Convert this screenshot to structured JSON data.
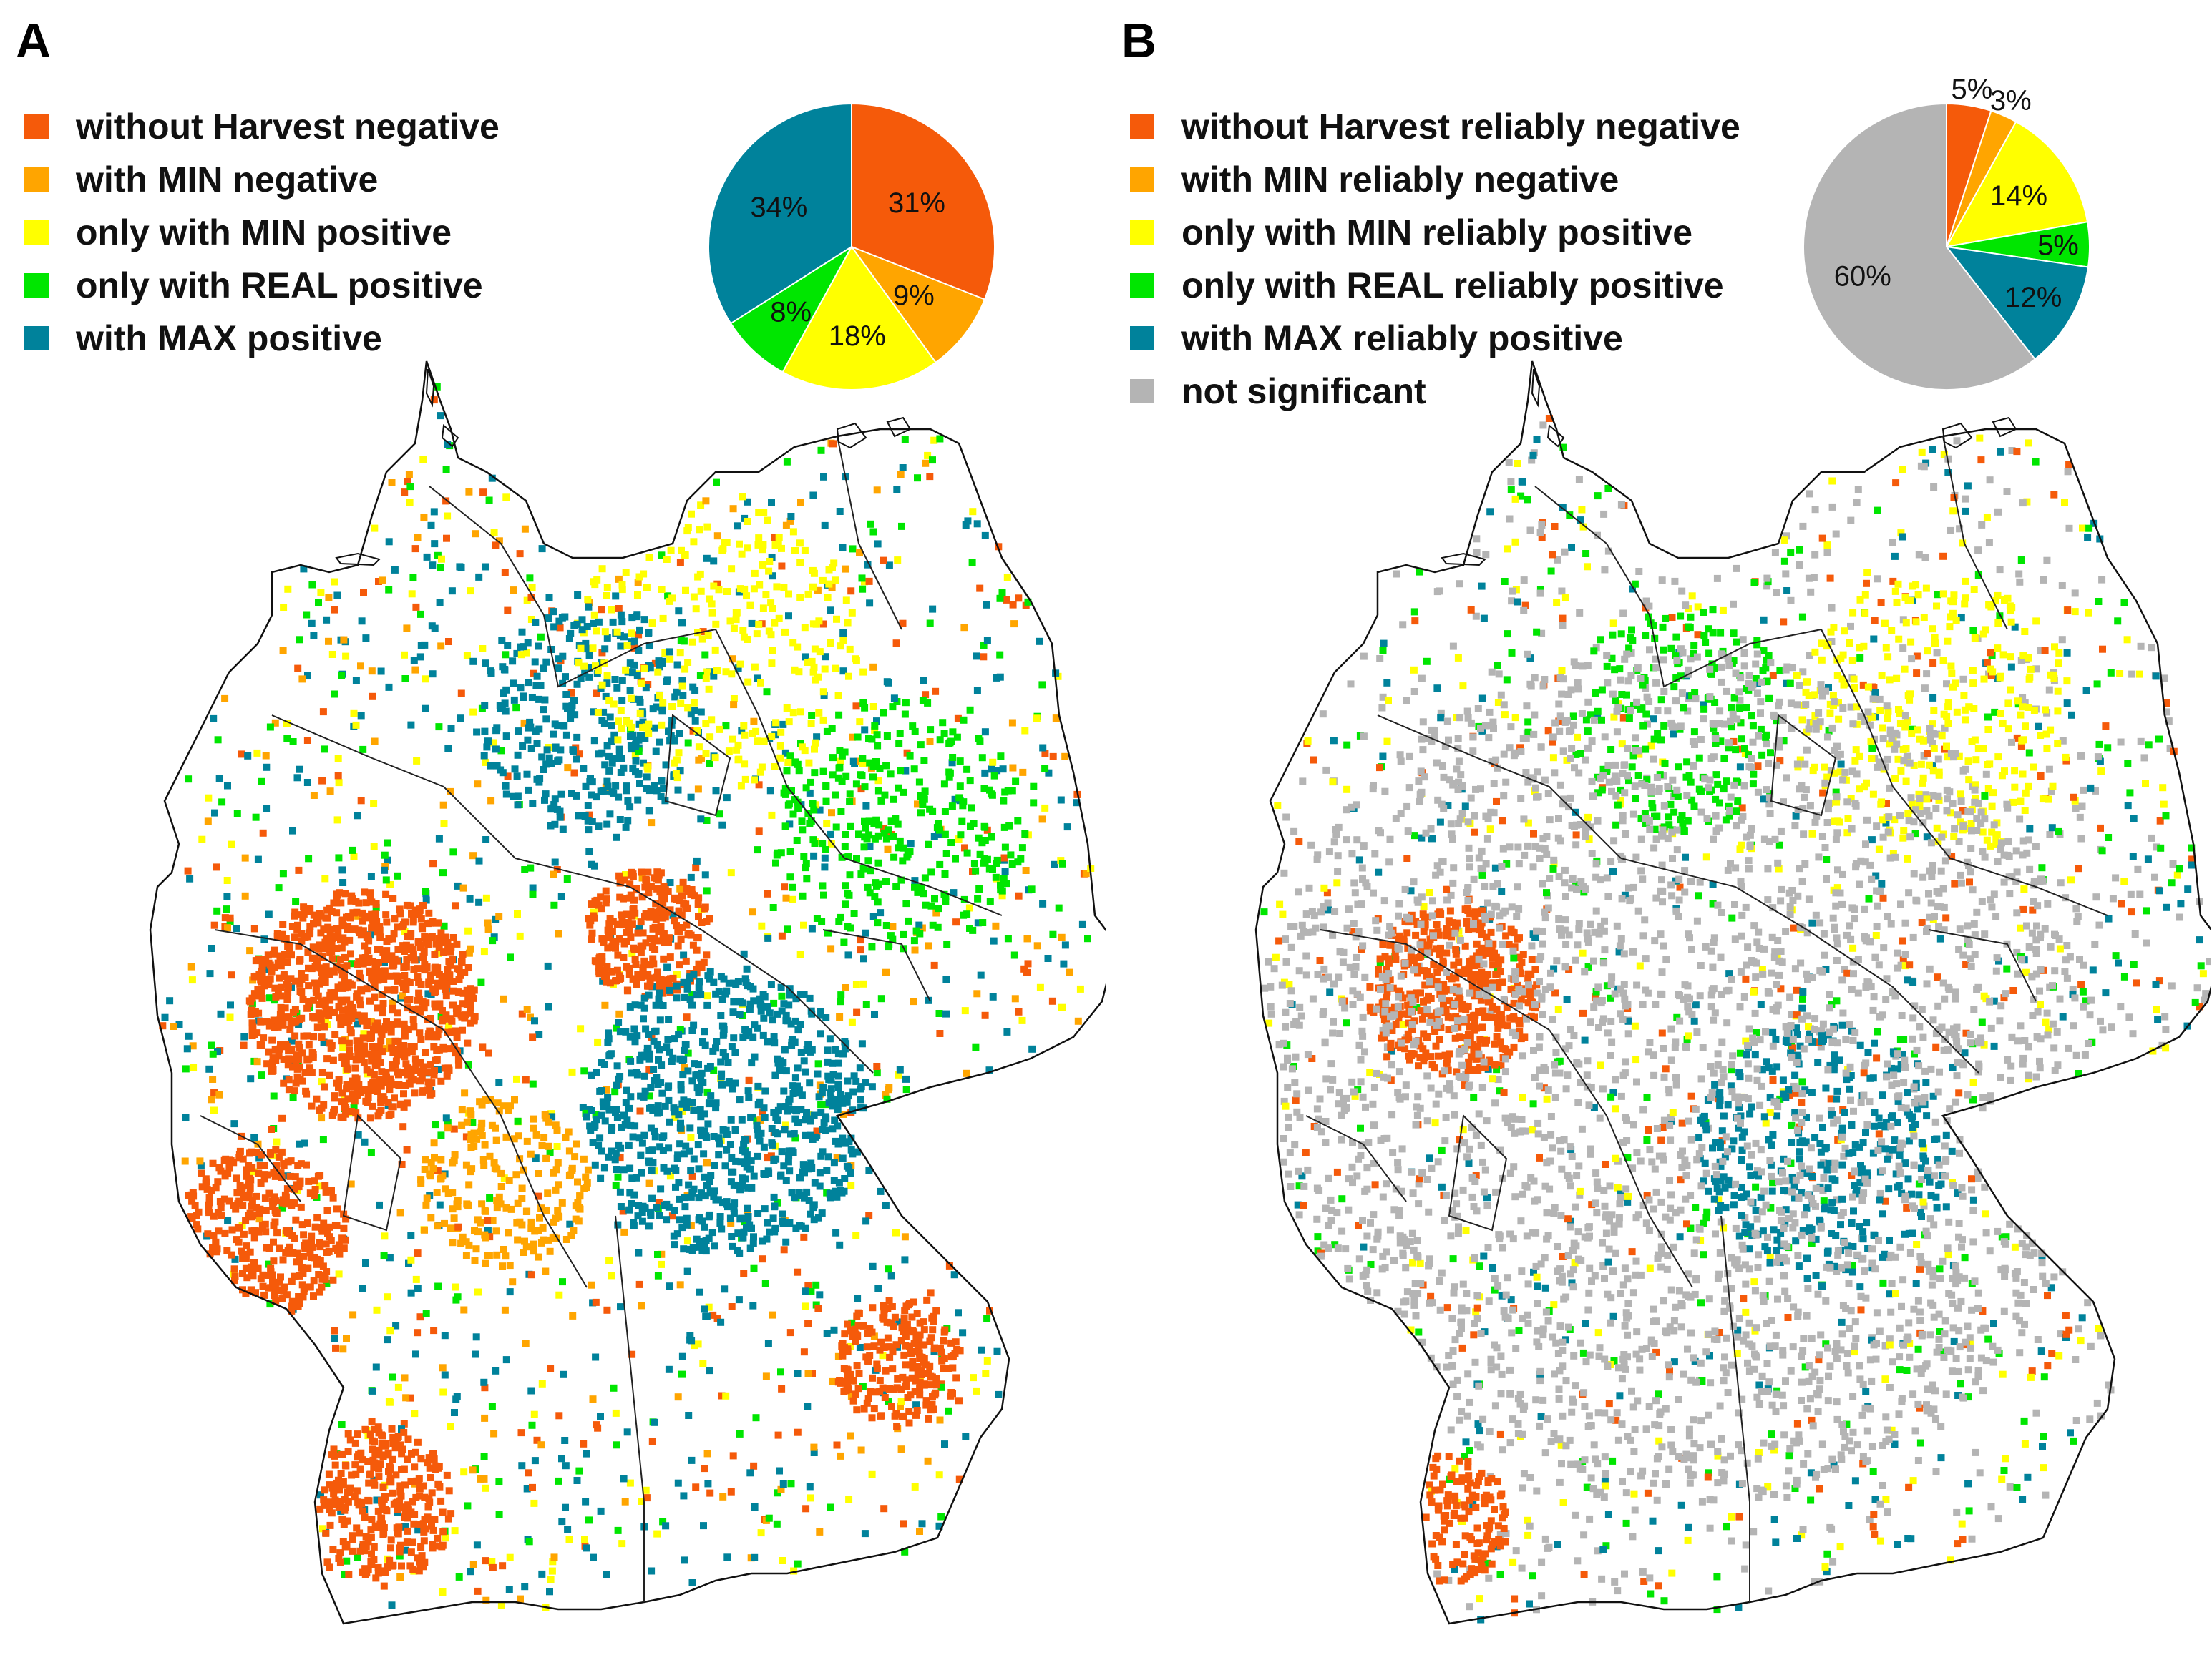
{
  "panels": [
    {
      "letter": "A",
      "legend": [
        {
          "label": "without Harvest negative",
          "color": "#f55a0a"
        },
        {
          "label": "with MIN negative",
          "color": "#ffa500"
        },
        {
          "label": "only with MIN positive",
          "color": "#ffff00"
        },
        {
          "label": "only with REAL positive",
          "color": "#00e600"
        },
        {
          "label": "with MAX positive",
          "color": "#00829b"
        }
      ],
      "chart_data": {
        "type": "pie",
        "slices": [
          {
            "category": "without Harvest negative",
            "value": 31,
            "label": "31%",
            "color": "#f55a0a"
          },
          {
            "category": "with MIN negative",
            "value": 9,
            "label": "9%",
            "color": "#ffa500"
          },
          {
            "category": "only with MIN positive",
            "value": 18,
            "label": "18%",
            "color": "#ffff00"
          },
          {
            "category": "only with REAL positive",
            "value": 8,
            "label": "8%",
            "color": "#00e600"
          },
          {
            "category": "with MAX positive",
            "value": 34,
            "label": "34%",
            "color": "#00829b"
          }
        ]
      }
    },
    {
      "letter": "B",
      "legend": [
        {
          "label": "without Harvest reliably negative",
          "color": "#f55a0a"
        },
        {
          "label": "with MIN reliably negative",
          "color": "#ffa500"
        },
        {
          "label": "only with MIN reliably positive",
          "color": "#ffff00"
        },
        {
          "label": "only with REAL reliably positive",
          "color": "#00e600"
        },
        {
          "label": "with MAX reliably positive",
          "color": "#00829b"
        },
        {
          "label": "not significant",
          "color": "#b4b4b4"
        }
      ],
      "chart_data": {
        "type": "pie",
        "slices": [
          {
            "category": "without Harvest reliably negative",
            "value": 5,
            "label": "5%",
            "color": "#f55a0a"
          },
          {
            "category": "with MIN reliably negative",
            "value": 3,
            "label": "3%",
            "color": "#ffa500"
          },
          {
            "category": "only with MIN reliably positive",
            "value": 14,
            "label": "14%",
            "color": "#ffff00"
          },
          {
            "category": "only with REAL reliably positive",
            "value": 5,
            "label": "5%",
            "color": "#00e600"
          },
          {
            "category": "with MAX reliably positive",
            "value": 12,
            "label": "12%",
            "color": "#00829b"
          },
          {
            "category": "not significant",
            "value": 60,
            "label": "60%",
            "color": "#b4b4b4"
          }
        ]
      }
    }
  ]
}
